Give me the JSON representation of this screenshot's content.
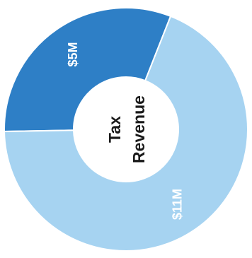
{
  "chart_data": {
    "type": "pie",
    "variant": "donut",
    "center_label_lines": [
      "Tax",
      "Revenue"
    ],
    "slices": [
      {
        "label": "$5M",
        "value": 5,
        "color": "#2e7fc6"
      },
      {
        "label": "$11M",
        "value": 11,
        "color": "#a6d3f1"
      }
    ],
    "label_rotation": "vertical (reading bottom-to-top)"
  }
}
